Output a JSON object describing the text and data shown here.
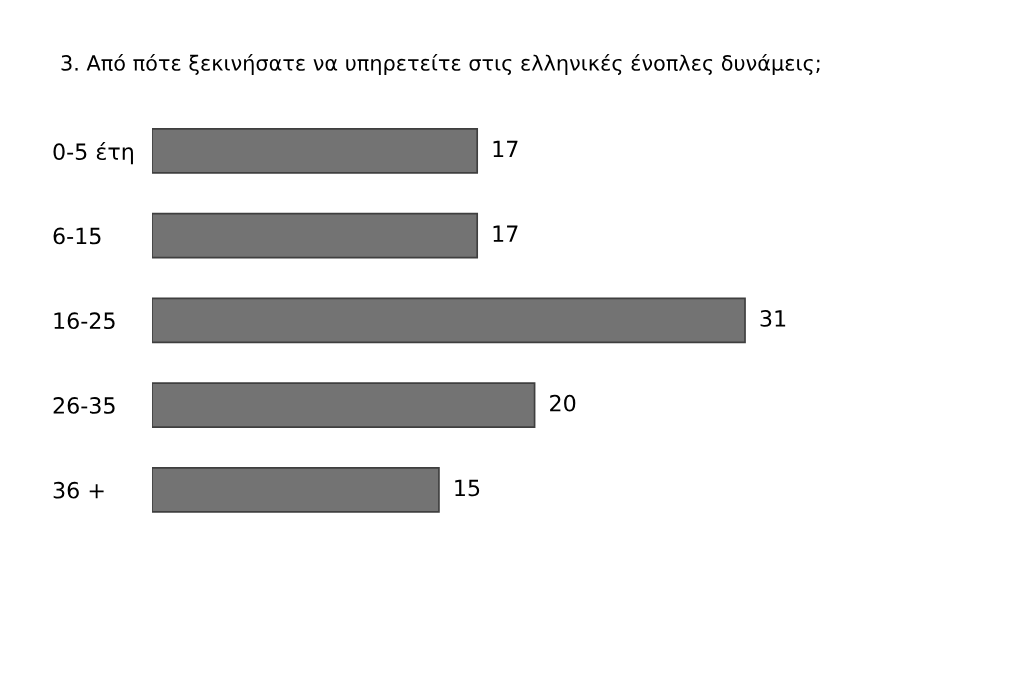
{
  "chart_data": {
    "type": "bar",
    "orientation": "horizontal",
    "title": "3. Από πότε ξεκινήσατε να υπηρετείτε στις ελληνικές ένοπλες δυνάμεις;",
    "categories": [
      "0-5 έτη",
      "6-15",
      "16-25",
      "26-35",
      "36 +"
    ],
    "values": [
      17,
      17,
      31,
      20,
      15
    ],
    "color": "#737373",
    "data_labels": true,
    "grid": false,
    "legend": false
  }
}
